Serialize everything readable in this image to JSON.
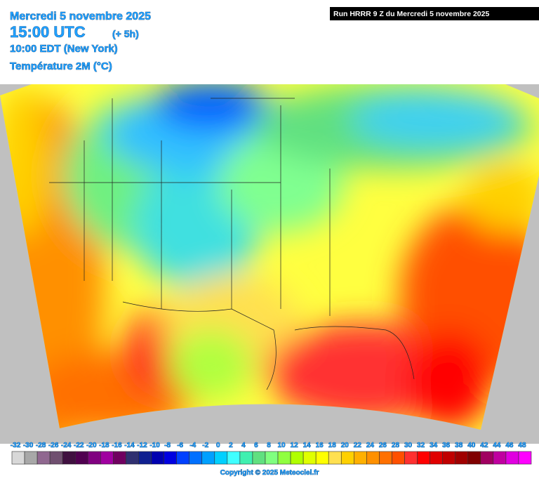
{
  "header": {
    "date": "Mercredi 5 novembre 2025",
    "time": "15:00 UTC",
    "offset": "(+ 5h)",
    "local": "10:00 EDT (New York)",
    "field": "Température 2M (°C)"
  },
  "run": "Run HRRR 9 Z du Mercredi 5 novembre 2025",
  "legend": {
    "labels": [
      -32,
      -30,
      -28,
      -26,
      -24,
      -22,
      -20,
      -18,
      -16,
      -14,
      -12,
      -10,
      -8,
      -6,
      -4,
      -2,
      0,
      2,
      4,
      6,
      8,
      10,
      12,
      14,
      16,
      18,
      20,
      22,
      24,
      26,
      28,
      30,
      32,
      34,
      36,
      38,
      40,
      42,
      44,
      46,
      48
    ],
    "colors": [
      "#d8d8d8",
      "#a8a8a8",
      "#906890",
      "#705070",
      "#401040",
      "#500050",
      "#800080",
      "#a000a0",
      "#700060",
      "#303070",
      "#102090",
      "#0000b0",
      "#0000e0",
      "#0040ff",
      "#0070ff",
      "#00a0ff",
      "#00d0ff",
      "#40ffff",
      "#40f0b0",
      "#60e080",
      "#80ff80",
      "#90ff40",
      "#b0ff00",
      "#e0ff00",
      "#ffff00",
      "#ffe050",
      "#ffd000",
      "#ffb000",
      "#ff9000",
      "#ff7000",
      "#ff5000",
      "#ff3030",
      "#ff0000",
      "#e00000",
      "#c00000",
      "#a00000",
      "#800000",
      "#a00060",
      "#c000a0",
      "#e000e0",
      "#ff00ff"
    ]
  },
  "copyright": "Copyright © 2025 Meteociel.fr"
}
